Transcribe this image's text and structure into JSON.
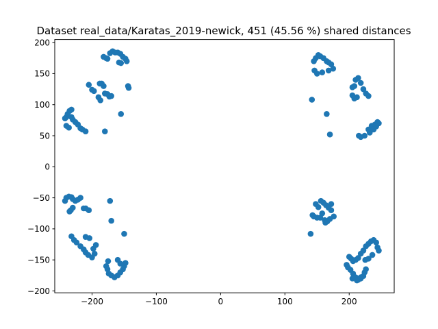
{
  "chart_data": {
    "type": "scatter",
    "title": "Dataset real_data/Karatas_2019-newick, 451 (45.56 %) shared distances",
    "xlabel": "",
    "ylabel": "",
    "xlim": [
      -258,
      270
    ],
    "ylim": [
      -203,
      205
    ],
    "xticks": [
      -200,
      -100,
      0,
      100,
      200
    ],
    "yticks": [
      -200,
      -150,
      -100,
      -50,
      0,
      50,
      100,
      150,
      200
    ],
    "grid": false,
    "marker_color": "#1f77b4",
    "series": [
      {
        "x": [
          -182,
          -178,
          -176,
          -172,
          -168,
          -164,
          -160,
          -156,
          -152,
          -148,
          -146,
          -158,
          -155,
          -205,
          -200,
          -197,
          -188,
          -185,
          -182,
          -180,
          -176,
          -173,
          -170,
          -190,
          -187,
          -144,
          -143,
          -155,
          -240,
          -238,
          -235,
          -232,
          -232,
          -230,
          -226,
          -222,
          -218,
          -215,
          -210,
          -242,
          -240,
          -236,
          -180,
          -242,
          -240,
          -236,
          -232,
          -230,
          -226,
          -222,
          -218,
          -213,
          -210,
          -205,
          -235,
          -233,
          -230,
          -172,
          -170,
          -232,
          -228,
          -224,
          -218,
          -213,
          -210,
          -206,
          -200,
          -196,
          -198,
          -194,
          -210,
          -204,
          -150,
          -178,
          -176,
          -174,
          -170,
          -165,
          -160,
          -156,
          -152,
          -150,
          -148,
          -175,
          -160,
          -156,
          145,
          148,
          152,
          155,
          160,
          165,
          168,
          172,
          175,
          146,
          150,
          158,
          168,
          142,
          165,
          170,
          205,
          208,
          210,
          214,
          218,
          222,
          226,
          230,
          212,
          208,
          205,
          230,
          235,
          240,
          244,
          246,
          242,
          238,
          232,
          224,
          218,
          215,
          140,
          163,
          172,
          200,
          203,
          206,
          210,
          214,
          218,
          222,
          226,
          230,
          234,
          238,
          242,
          244,
          246,
          236,
          230,
          225,
          148,
          152,
          156,
          160,
          164,
          168,
          172,
          176,
          150,
          145,
          143,
          155,
          162,
          166,
          170,
          158,
          196,
          198,
          202,
          206,
          210,
          214,
          218,
          222,
          224,
          226,
          218,
          212,
          205
        ],
        "y": [
          177,
          175,
          174,
          183,
          186,
          184,
          184,
          182,
          177,
          174,
          170,
          168,
          167,
          132,
          124,
          122,
          134,
          134,
          130,
          118,
          117,
          113,
          114,
          112,
          107,
          130,
          127,
          85,
          80,
          85,
          90,
          92,
          80,
          76,
          72,
          68,
          62,
          60,
          57,
          78,
          66,
          63,
          57,
          -55,
          -50,
          -48,
          -49,
          -52,
          -55,
          -53,
          -50,
          -67,
          -67,
          -70,
          -72,
          -70,
          -66,
          -55,
          -87,
          -112,
          -118,
          -122,
          -128,
          -133,
          -138,
          -142,
          -146,
          -140,
          -132,
          -126,
          -113,
          -115,
          -108,
          -160,
          -165,
          -172,
          -175,
          -178,
          -175,
          -170,
          -165,
          -160,
          -155,
          -152,
          -150,
          -156,
          170,
          175,
          180,
          178,
          175,
          170,
          168,
          165,
          158,
          155,
          150,
          152,
          155,
          108,
          85,
          52,
          128,
          130,
          140,
          143,
          135,
          125,
          118,
          114,
          112,
          110,
          115,
          60,
          66,
          68,
          72,
          70,
          65,
          60,
          55,
          50,
          48,
          50,
          -108,
          -90,
          -60,
          -145,
          -148,
          -152,
          -150,
          -147,
          -140,
          -135,
          -128,
          -124,
          -120,
          -118,
          -122,
          -130,
          -135,
          -142,
          -148,
          -150,
          -60,
          -65,
          -55,
          -58,
          -62,
          -66,
          -70,
          -80,
          -82,
          -80,
          -78,
          -82,
          -86,
          -88,
          -84,
          -75,
          -158,
          -162,
          -166,
          -172,
          -178,
          -182,
          -180,
          -176,
          -170,
          -165,
          -178,
          -183,
          -180
        ]
      }
    ]
  }
}
